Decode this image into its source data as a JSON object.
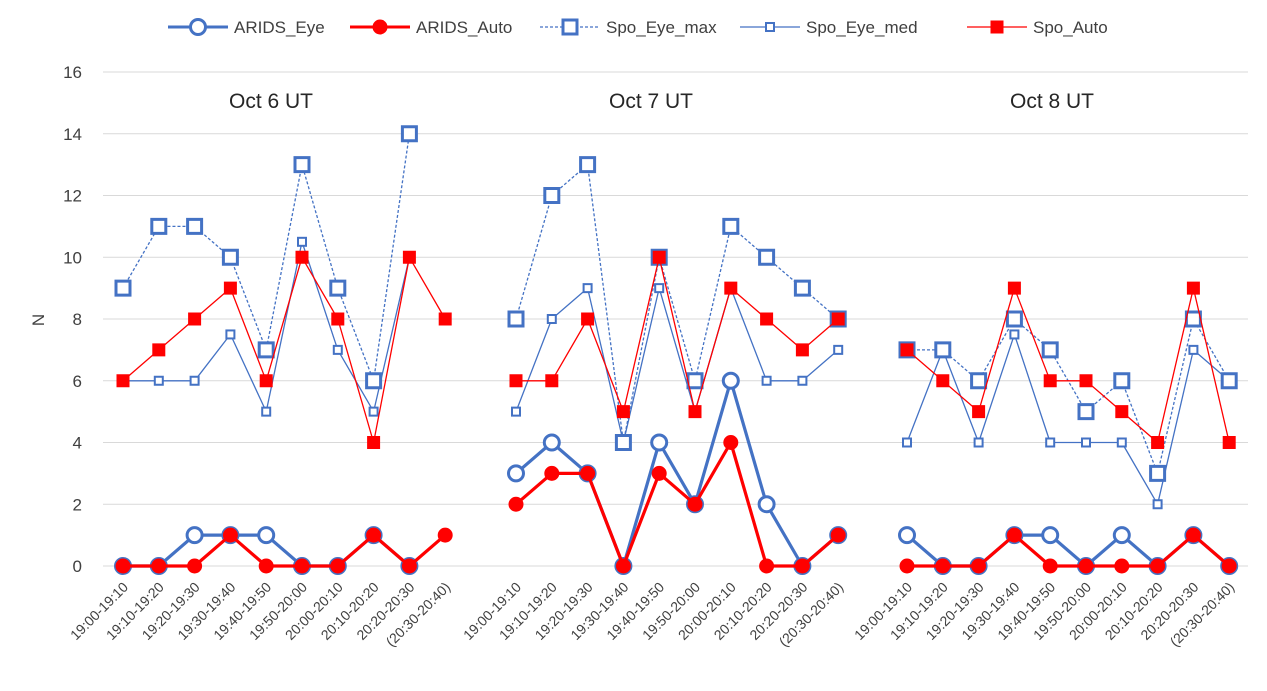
{
  "chart_data": {
    "type": "line",
    "ylabel": "N",
    "ylim": [
      0,
      16
    ],
    "yticks": [
      0,
      2,
      4,
      6,
      8,
      10,
      12,
      14,
      16
    ],
    "grid": true,
    "legend_position": "top",
    "categories": [
      "19:00-19:10",
      "19:10-19:20",
      "19:20-19:30",
      "19:30-19:40",
      "19:40-19:50",
      "19:50-20:00",
      "20:00-20:10",
      "20:10-20:20",
      "20:20-20:30",
      "(20:30-20:40)"
    ],
    "colors": {
      "blue": "#4472c4",
      "red": "#ff0000",
      "grid": "#d9d9d9"
    },
    "legend": [
      {
        "name": "ARIDS_Eye",
        "color": "#4472c4",
        "dash": "solid",
        "marker": "circle-open"
      },
      {
        "name": "ARIDS_Auto",
        "color": "#ff0000",
        "dash": "solid",
        "marker": "circle-filled"
      },
      {
        "name": "Spo_Eye_max",
        "color": "#4472c4",
        "dash": "dashed",
        "marker": "square-open"
      },
      {
        "name": "Spo_Eye_med",
        "color": "#4472c4",
        "dash": "solid",
        "marker": "square-open-small"
      },
      {
        "name": "Spo_Auto",
        "color": "#ff0000",
        "dash": "solid",
        "marker": "square-filled"
      }
    ],
    "panels": [
      {
        "title": "Oct 6 UT",
        "series": {
          "ARIDS_Eye": [
            0,
            0,
            1,
            1,
            1,
            0,
            0,
            1,
            0,
            null
          ],
          "ARIDS_Auto": [
            0,
            0,
            0,
            1,
            0,
            0,
            0,
            1,
            0,
            1
          ],
          "Spo_Eye_max": [
            9,
            11,
            11,
            10,
            7,
            13,
            9,
            6,
            14,
            null
          ],
          "Spo_Eye_med": [
            6,
            6,
            6,
            7.5,
            5,
            10.5,
            7,
            5,
            10,
            null
          ],
          "Spo_Auto": [
            6,
            7,
            8,
            9,
            6,
            10,
            8,
            4,
            10,
            8
          ]
        }
      },
      {
        "title": "Oct 7 UT",
        "series": {
          "ARIDS_Eye": [
            3,
            4,
            3,
            0,
            4,
            2,
            6,
            2,
            0,
            1
          ],
          "ARIDS_Auto": [
            2,
            3,
            3,
            0,
            3,
            2,
            4,
            0,
            0,
            1
          ],
          "Spo_Eye_max": [
            8,
            12,
            13,
            4,
            10,
            6,
            11,
            10,
            9,
            8
          ],
          "Spo_Eye_med": [
            5,
            8,
            9,
            4,
            9,
            5,
            9,
            6,
            6,
            7
          ],
          "Spo_Auto": [
            6,
            6,
            8,
            5,
            10,
            5,
            9,
            8,
            7,
            8
          ]
        }
      },
      {
        "title": "Oct 8 UT",
        "series": {
          "ARIDS_Eye": [
            1,
            0,
            0,
            1,
            1,
            0,
            1,
            0,
            1,
            0
          ],
          "ARIDS_Auto": [
            0,
            0,
            0,
            1,
            0,
            0,
            0,
            0,
            1,
            0
          ],
          "Spo_Eye_max": [
            7,
            7,
            6,
            8,
            7,
            5,
            6,
            3,
            8,
            6
          ],
          "Spo_Eye_med": [
            4,
            7,
            4,
            7.5,
            4,
            4,
            4,
            2,
            7,
            6
          ],
          "Spo_Auto": [
            7,
            6,
            5,
            9,
            6,
            6,
            5,
            4,
            9,
            4
          ]
        }
      }
    ]
  }
}
